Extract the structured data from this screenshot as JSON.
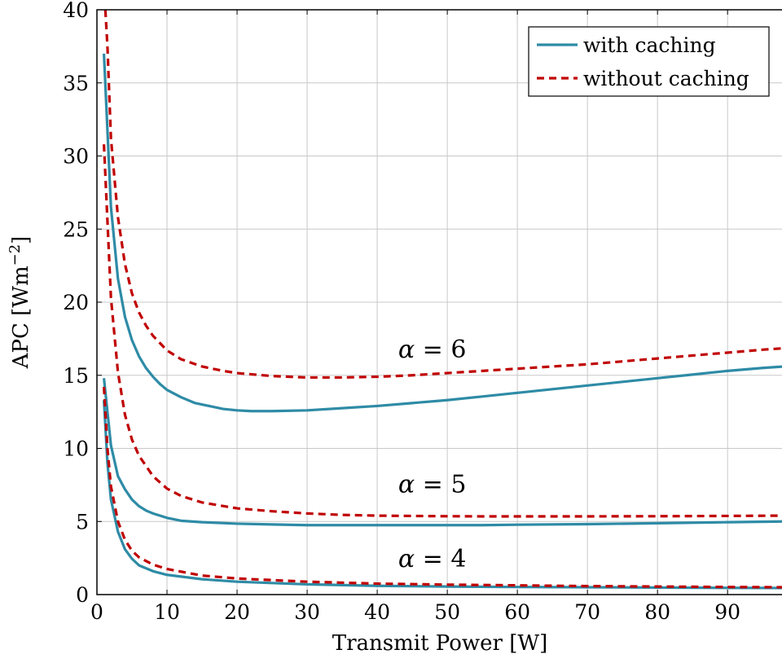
{
  "chart_data": {
    "type": "line",
    "xlabel": "Transmit Power [W]",
    "ylabel": "APC [Wm",
    "ylabel_sup": "−2",
    "ylabel_close": "]",
    "xlim": [
      0,
      98
    ],
    "ylim": [
      0,
      40
    ],
    "xticks": [
      0,
      10,
      20,
      30,
      40,
      50,
      60,
      70,
      80,
      90
    ],
    "yticks": [
      0,
      5,
      10,
      15,
      20,
      25,
      30,
      35,
      40
    ],
    "grid": true,
    "legend_position": "top-right",
    "legend": [
      {
        "label": "with caching",
        "style": "solid",
        "color": "#2e8ba6"
      },
      {
        "label": "without caching",
        "style": "dashed",
        "color": "#c00000"
      }
    ],
    "annotations": [
      {
        "text": "α = 6",
        "x": 43,
        "y": 16.2
      },
      {
        "text": "α = 5",
        "x": 43,
        "y": 7.0
      },
      {
        "text": "α = 4",
        "x": 43,
        "y": 1.9
      }
    ],
    "series": [
      {
        "group": "α = 6",
        "legend": "with caching",
        "style": "solid",
        "color": "#2e8ba6",
        "x": [
          1,
          2,
          3,
          4,
          5,
          6,
          7,
          8,
          9,
          10,
          12,
          14,
          16,
          18,
          20,
          22,
          25,
          30,
          35,
          40,
          45,
          50,
          55,
          60,
          65,
          70,
          75,
          80,
          85,
          90,
          95,
          98
        ],
        "y": [
          37,
          26.5,
          21.6,
          19.0,
          17.4,
          16.3,
          15.5,
          14.9,
          14.4,
          14.0,
          13.5,
          13.1,
          12.9,
          12.7,
          12.6,
          12.55,
          12.55,
          12.6,
          12.75,
          12.9,
          13.1,
          13.3,
          13.55,
          13.8,
          14.05,
          14.3,
          14.55,
          14.8,
          15.05,
          15.3,
          15.5,
          15.6
        ]
      },
      {
        "group": "α = 6",
        "legend": "without caching",
        "style": "dashed",
        "color": "#c00000",
        "x": [
          1.2,
          1.5,
          2,
          3,
          4,
          5,
          6,
          7,
          8,
          10,
          12,
          15,
          18,
          20,
          25,
          30,
          35,
          40,
          45,
          50,
          55,
          60,
          65,
          70,
          75,
          80,
          85,
          90,
          95,
          98
        ],
        "y": [
          40,
          37.5,
          31.2,
          25.8,
          22.6,
          20.6,
          19.3,
          18.4,
          17.7,
          16.7,
          16.1,
          15.6,
          15.3,
          15.15,
          14.95,
          14.85,
          14.85,
          14.9,
          15.0,
          15.15,
          15.3,
          15.45,
          15.6,
          15.75,
          15.95,
          16.15,
          16.35,
          16.55,
          16.75,
          16.85
        ]
      },
      {
        "group": "α = 5",
        "legend": "with caching",
        "style": "solid",
        "color": "#2e8ba6",
        "x": [
          1,
          2,
          3,
          4,
          5,
          6,
          7,
          8,
          10,
          12,
          15,
          20,
          25,
          30,
          35,
          40,
          45,
          50,
          55,
          60,
          70,
          80,
          90,
          98
        ],
        "y": [
          14.8,
          10.2,
          8.1,
          7.2,
          6.5,
          6.05,
          5.75,
          5.55,
          5.25,
          5.05,
          4.95,
          4.85,
          4.8,
          4.75,
          4.75,
          4.75,
          4.75,
          4.75,
          4.75,
          4.78,
          4.82,
          4.88,
          4.95,
          5.0
        ]
      },
      {
        "group": "α = 5",
        "legend": "without caching",
        "style": "dashed",
        "color": "#c00000",
        "x": [
          1,
          2,
          3,
          4,
          5,
          6,
          8,
          10,
          12,
          15,
          20,
          25,
          30,
          35,
          40,
          45,
          50,
          55,
          60,
          70,
          80,
          90,
          98
        ],
        "y": [
          30.8,
          20.3,
          15.2,
          12.3,
          10.6,
          9.5,
          8.1,
          7.25,
          6.75,
          6.3,
          5.9,
          5.7,
          5.55,
          5.45,
          5.4,
          5.38,
          5.36,
          5.35,
          5.35,
          5.35,
          5.36,
          5.38,
          5.4
        ]
      },
      {
        "group": "α = 4",
        "legend": "with caching",
        "style": "solid",
        "color": "#2e8ba6",
        "x": [
          1,
          1.5,
          2,
          3,
          4,
          5,
          6,
          8,
          10,
          15,
          20,
          30,
          40,
          50,
          60,
          70,
          80,
          90,
          98
        ],
        "y": [
          13.3,
          9.0,
          6.5,
          4.3,
          3.1,
          2.45,
          2.0,
          1.6,
          1.35,
          1.05,
          0.88,
          0.7,
          0.6,
          0.55,
          0.52,
          0.5,
          0.48,
          0.46,
          0.45
        ]
      },
      {
        "group": "α = 4",
        "legend": "without caching",
        "style": "dashed",
        "color": "#c00000",
        "x": [
          1,
          1.5,
          2,
          3,
          4,
          5,
          6,
          8,
          10,
          15,
          20,
          30,
          40,
          50,
          60,
          70,
          80,
          90,
          98
        ],
        "y": [
          14.2,
          10.0,
          7.4,
          5.0,
          3.75,
          3.0,
          2.55,
          2.05,
          1.75,
          1.3,
          1.1,
          0.88,
          0.75,
          0.68,
          0.63,
          0.58,
          0.55,
          0.52,
          0.5
        ]
      }
    ]
  }
}
